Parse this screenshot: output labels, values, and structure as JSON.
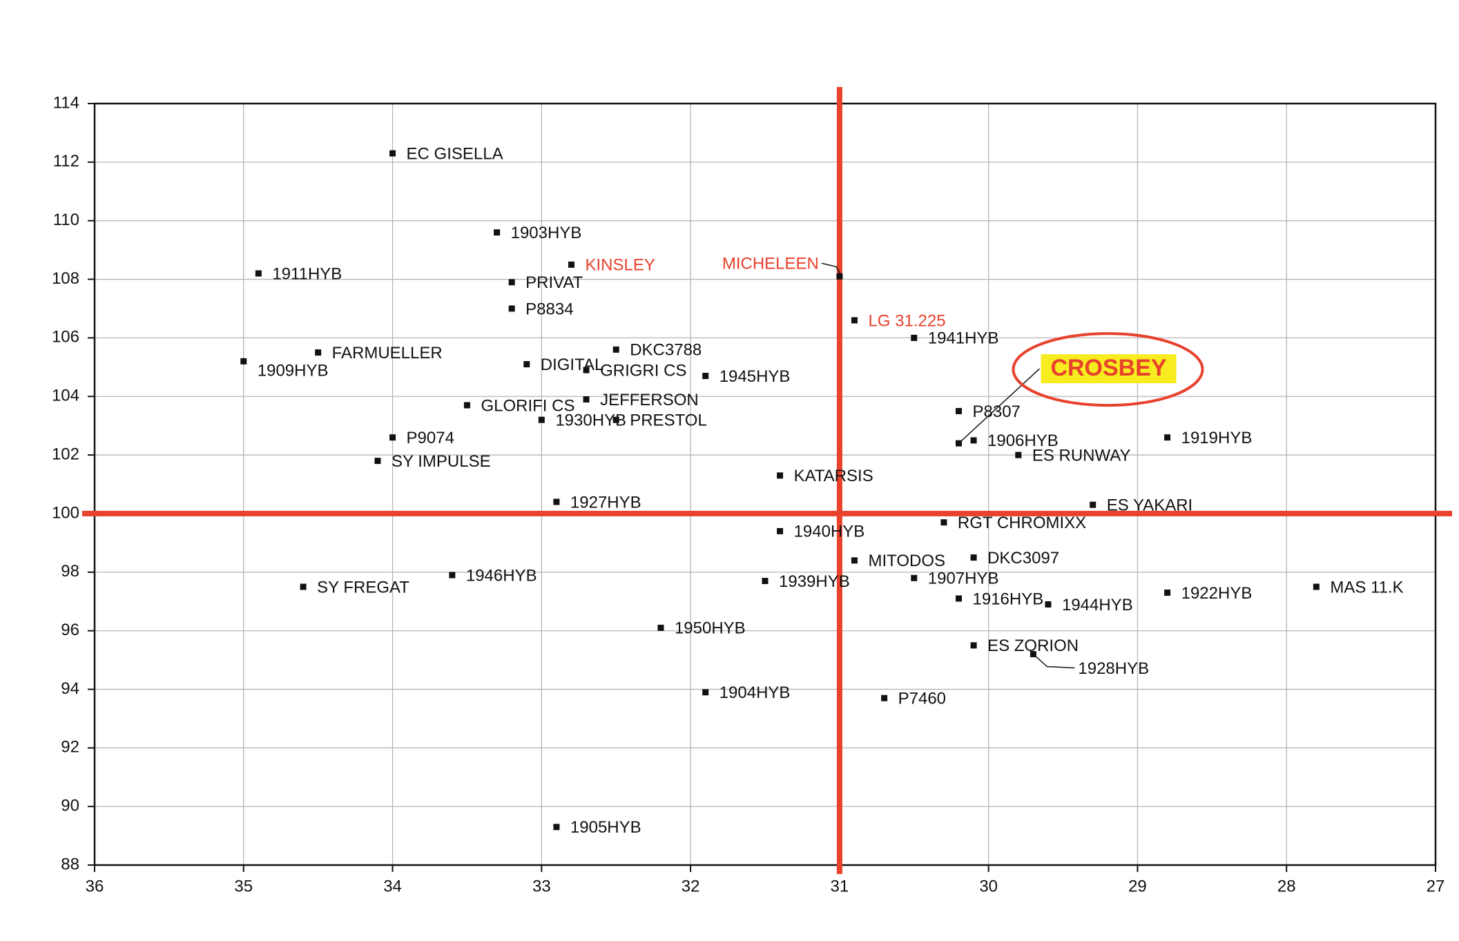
{
  "chart_data": {
    "type": "scatter",
    "xlim": [
      36,
      27
    ],
    "ylim": [
      88,
      114
    ],
    "xticks": [
      36,
      35,
      34,
      33,
      32,
      31,
      30,
      29,
      28,
      27
    ],
    "yticks": [
      88,
      90,
      92,
      94,
      96,
      98,
      100,
      102,
      104,
      106,
      108,
      110,
      112,
      114
    ],
    "grid": true,
    "marker_color": "#111111",
    "reference_lines": {
      "x": 31,
      "y": 100,
      "color": "#e8412c"
    },
    "points": [
      {
        "label": "EC GISELLA",
        "x": 34.0,
        "y": 112.3,
        "label_color": "#111111"
      },
      {
        "label": "1903HYB",
        "x": 33.3,
        "y": 109.6,
        "label_color": "#111111"
      },
      {
        "label": "KINSLEY",
        "x": 32.8,
        "y": 108.5,
        "label_color": "#e8412c"
      },
      {
        "label": "1911HYB",
        "x": 34.9,
        "y": 108.2,
        "label_color": "#111111"
      },
      {
        "label": "PRIVAT",
        "x": 33.2,
        "y": 107.9,
        "label_color": "#111111"
      },
      {
        "label": "P8834",
        "x": 33.2,
        "y": 107.0,
        "label_color": "#111111"
      },
      {
        "label": "MICHELEEN",
        "x": 31.0,
        "y": 108.1,
        "label_color": "#e8412c"
      },
      {
        "label": "LG 31.225",
        "x": 30.9,
        "y": 106.6,
        "label_color": "#e8412c"
      },
      {
        "label": "1941HYB",
        "x": 30.5,
        "y": 106.0,
        "label_color": "#111111"
      },
      {
        "label": "FARMUELLER",
        "x": 34.5,
        "y": 105.5,
        "label_color": "#111111"
      },
      {
        "label": "1909HYB",
        "x": 35.0,
        "y": 105.2,
        "label_color": "#111111"
      },
      {
        "label": "DKC3788",
        "x": 32.5,
        "y": 105.6,
        "label_color": "#111111"
      },
      {
        "label": "DIGITAL",
        "x": 33.1,
        "y": 105.1,
        "label_color": "#111111"
      },
      {
        "label": "GRIGRI CS",
        "x": 32.7,
        "y": 104.9,
        "label_color": "#111111"
      },
      {
        "label": "1945HYB",
        "x": 31.9,
        "y": 104.7,
        "label_color": "#111111"
      },
      {
        "label": "CROSBEY",
        "x": 30.2,
        "y": 102.4,
        "label_color": "#e8412c",
        "highlight_box": "#f7ec1f"
      },
      {
        "label": "GLORIFI CS",
        "x": 33.5,
        "y": 103.7,
        "label_color": "#111111"
      },
      {
        "label": "JEFFERSON",
        "x": 32.7,
        "y": 103.9,
        "label_color": "#111111"
      },
      {
        "label": "1930HYB",
        "x": 33.0,
        "y": 103.2,
        "label_color": "#111111"
      },
      {
        "label": "PRESTOL",
        "x": 32.5,
        "y": 103.2,
        "label_color": "#111111"
      },
      {
        "label": "P8307",
        "x": 30.2,
        "y": 103.5,
        "label_color": "#111111"
      },
      {
        "label": "1906HYB",
        "x": 30.1,
        "y": 102.5,
        "label_color": "#111111"
      },
      {
        "label": "1919HYB",
        "x": 28.8,
        "y": 102.6,
        "label_color": "#111111"
      },
      {
        "label": "ES RUNWAY",
        "x": 29.8,
        "y": 102.0,
        "label_color": "#111111"
      },
      {
        "label": "P9074",
        "x": 34.0,
        "y": 102.6,
        "label_color": "#111111"
      },
      {
        "label": "SY IMPULSE",
        "x": 34.1,
        "y": 101.8,
        "label_color": "#111111"
      },
      {
        "label": "KATARSIS",
        "x": 31.4,
        "y": 101.3,
        "label_color": "#111111"
      },
      {
        "label": "1927HYB",
        "x": 32.9,
        "y": 100.4,
        "label_color": "#111111"
      },
      {
        "label": "ES YAKARI",
        "x": 29.3,
        "y": 100.3,
        "label_color": "#111111"
      },
      {
        "label": "RGT CHROMIXX",
        "x": 30.3,
        "y": 99.7,
        "label_color": "#111111"
      },
      {
        "label": "1940HYB",
        "x": 31.4,
        "y": 99.4,
        "label_color": "#111111"
      },
      {
        "label": "MITODOS",
        "x": 30.9,
        "y": 98.4,
        "label_color": "#111111"
      },
      {
        "label": "DKC3097",
        "x": 30.1,
        "y": 98.5,
        "label_color": "#111111"
      },
      {
        "label": "1946HYB",
        "x": 33.6,
        "y": 97.9,
        "label_color": "#111111"
      },
      {
        "label": "SY FREGAT",
        "x": 34.6,
        "y": 97.5,
        "label_color": "#111111"
      },
      {
        "label": "1939HYB",
        "x": 31.5,
        "y": 97.7,
        "label_color": "#111111"
      },
      {
        "label": "1907HYB",
        "x": 30.5,
        "y": 97.8,
        "label_color": "#111111"
      },
      {
        "label": "1916HYB",
        "x": 30.2,
        "y": 97.1,
        "label_color": "#111111"
      },
      {
        "label": "1944HYB",
        "x": 29.6,
        "y": 96.9,
        "label_color": "#111111"
      },
      {
        "label": "1922HYB",
        "x": 28.8,
        "y": 97.3,
        "label_color": "#111111"
      },
      {
        "label": "MAS 11.K",
        "x": 27.8,
        "y": 97.5,
        "label_color": "#111111"
      },
      {
        "label": "1950HYB",
        "x": 32.2,
        "y": 96.1,
        "label_color": "#111111"
      },
      {
        "label": "ES ZORION",
        "x": 30.1,
        "y": 95.5,
        "label_color": "#111111"
      },
      {
        "label": "1928HYB",
        "x": 29.7,
        "y": 95.2,
        "label_color": "#111111"
      },
      {
        "label": "1904HYB",
        "x": 31.9,
        "y": 93.9,
        "label_color": "#111111"
      },
      {
        "label": "P7460",
        "x": 30.7,
        "y": 93.7,
        "label_color": "#111111"
      },
      {
        "label": "1905HYB",
        "x": 32.9,
        "y": 89.3,
        "label_color": "#111111"
      }
    ]
  }
}
